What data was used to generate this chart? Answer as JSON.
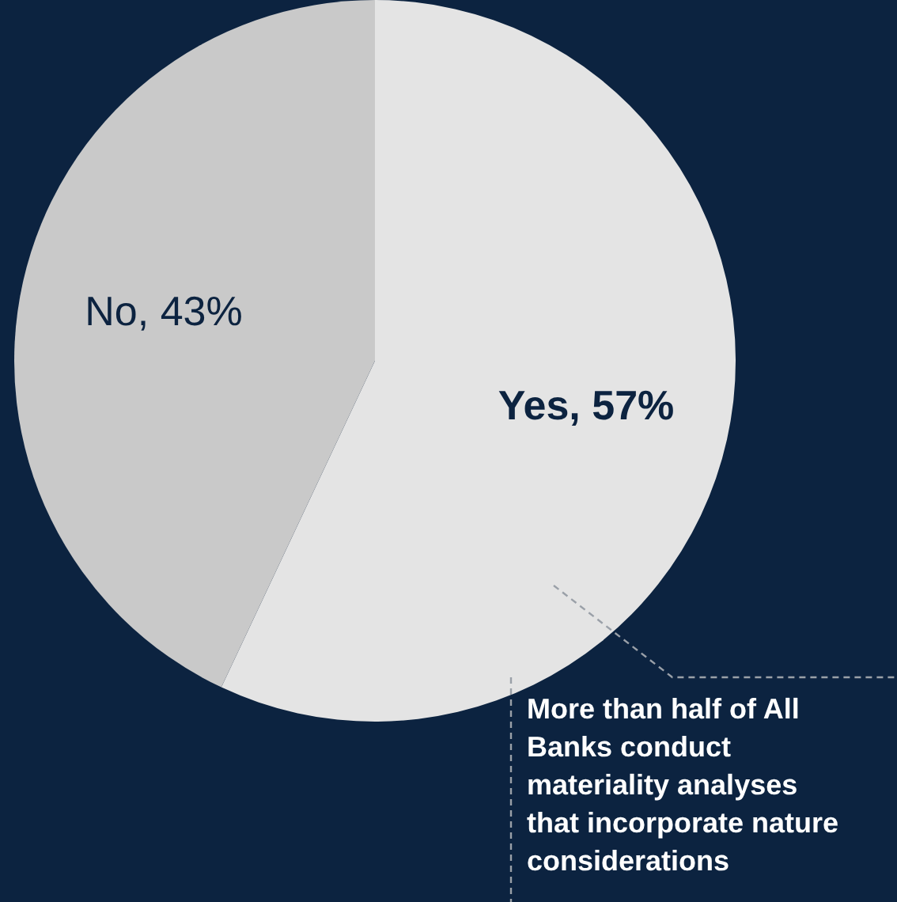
{
  "chart_data": {
    "type": "pie",
    "categories": [
      "Yes",
      "No"
    ],
    "values": [
      57,
      43
    ],
    "colors": [
      "#e4e4e4",
      "#c9c9c9"
    ],
    "value_labels": [
      "57%",
      "43%"
    ],
    "annotations": [
      "More than half of All Banks conduct materiality analyses that incorporate nature considerations"
    ]
  }
}
